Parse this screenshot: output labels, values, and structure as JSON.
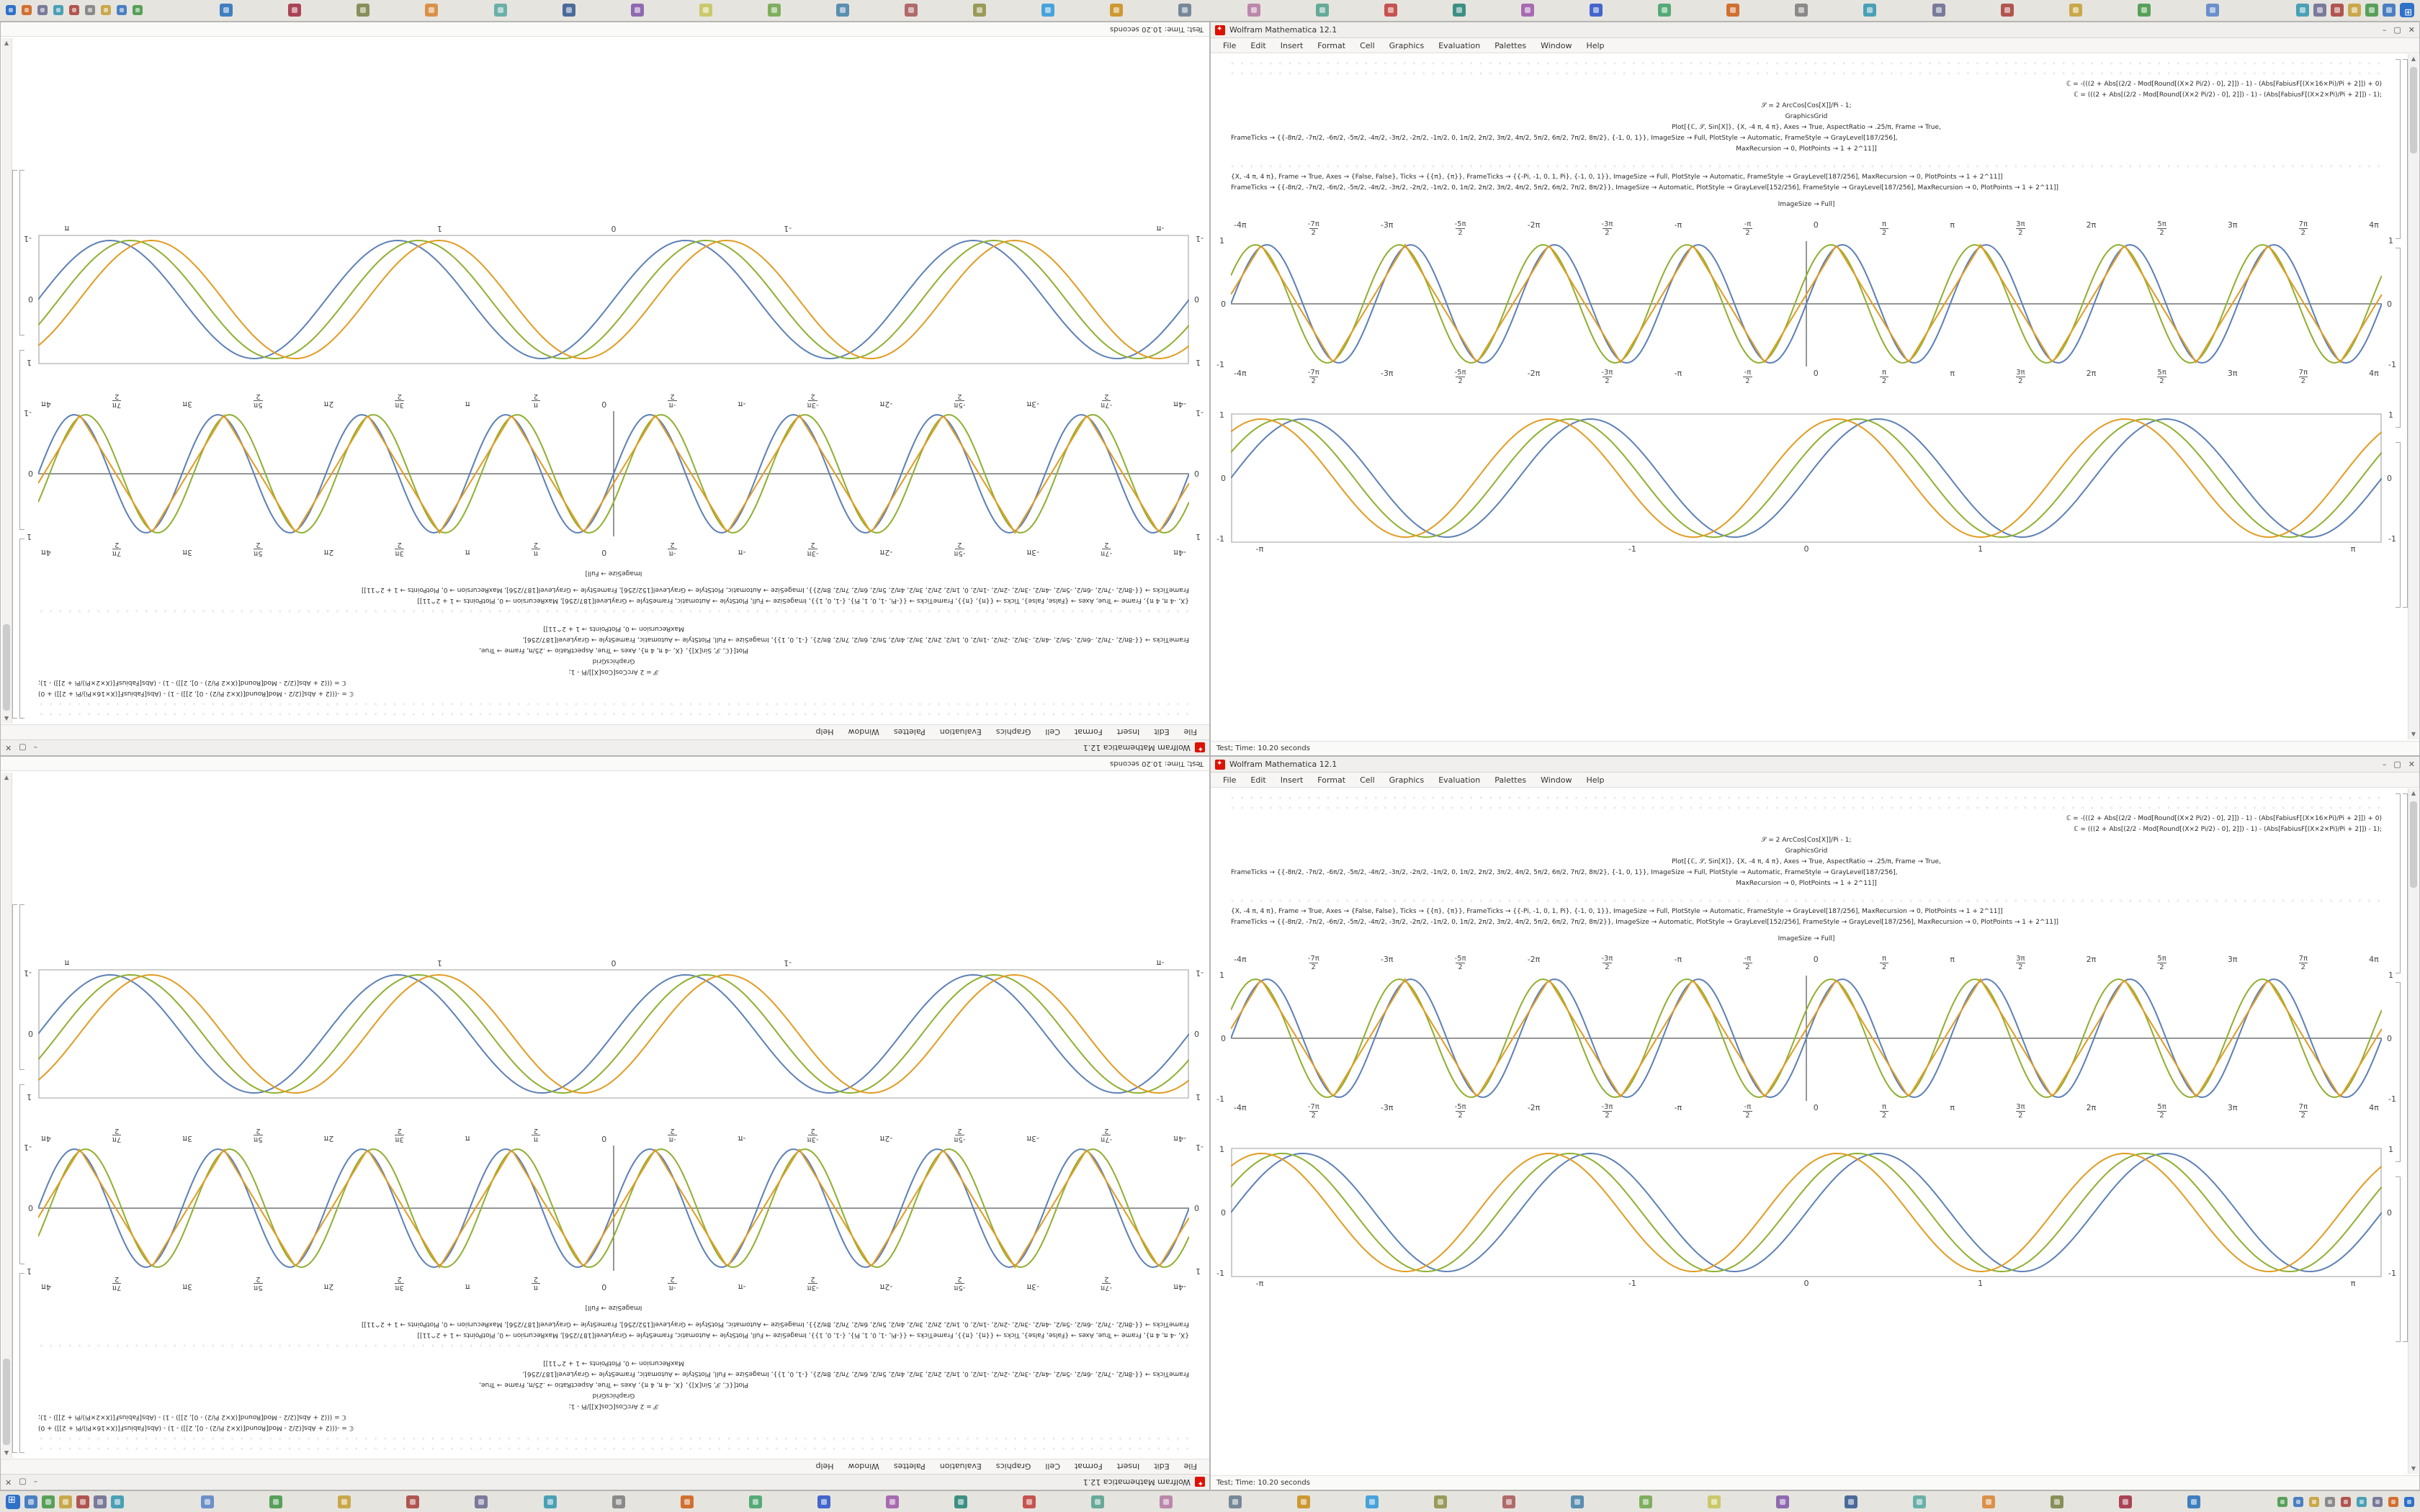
{
  "desktop": {
    "background": "#ffffff"
  },
  "taskbar": {
    "background": "#e6e4df",
    "start_label": "start",
    "left_icons": [
      {
        "name": "app-icon",
        "color": "#4a7fc1"
      },
      {
        "name": "app-icon",
        "color": "#58a05a"
      },
      {
        "name": "app-icon",
        "color": "#c9a84c"
      },
      {
        "name": "app-icon",
        "color": "#b05550"
      },
      {
        "name": "app-icon",
        "color": "#7a7a9a"
      },
      {
        "name": "app-icon",
        "color": "#4aa0b5"
      }
    ],
    "middle_icons": [
      {
        "name": "app-icon",
        "color": "#6b8fc9"
      },
      {
        "name": "app-icon",
        "color": "#58a05a"
      },
      {
        "name": "app-icon",
        "color": "#c9a84c"
      },
      {
        "name": "app-icon",
        "color": "#b05550"
      },
      {
        "name": "app-icon",
        "color": "#7a7a9a"
      },
      {
        "name": "app-icon",
        "color": "#4aa0b5"
      },
      {
        "name": "app-icon",
        "color": "#8a8a8a"
      },
      {
        "name": "app-icon",
        "color": "#d07030"
      },
      {
        "name": "app-icon",
        "color": "#55aa77"
      },
      {
        "name": "app-icon",
        "color": "#4466cc"
      },
      {
        "name": "app-icon",
        "color": "#a66bb0"
      },
      {
        "name": "app-icon",
        "color": "#3d8f83"
      },
      {
        "name": "app-icon",
        "color": "#c5534f"
      },
      {
        "name": "app-icon",
        "color": "#66aa99"
      },
      {
        "name": "app-icon",
        "color": "#bb88aa"
      },
      {
        "name": "app-icon",
        "color": "#778899"
      },
      {
        "name": "app-icon",
        "color": "#cc9933"
      },
      {
        "name": "app-icon",
        "color": "#47a3d9"
      },
      {
        "name": "app-icon",
        "color": "#9a9a5a"
      },
      {
        "name": "app-icon",
        "color": "#b06a6a"
      },
      {
        "name": "app-icon",
        "color": "#5a8fb0"
      },
      {
        "name": "app-icon",
        "color": "#7fae5f"
      },
      {
        "name": "app-icon",
        "color": "#c9c96b"
      },
      {
        "name": "app-icon",
        "color": "#8f6ab0"
      },
      {
        "name": "app-icon",
        "color": "#4a6b9a"
      },
      {
        "name": "app-icon",
        "color": "#6bb0a8"
      },
      {
        "name": "app-icon",
        "color": "#d9914a"
      },
      {
        "name": "app-icon",
        "color": "#888f5a"
      },
      {
        "name": "app-icon",
        "color": "#aa4455"
      },
      {
        "name": "app-icon",
        "color": "#3f7fbf"
      }
    ],
    "tray_icons": [
      {
        "name": "tray-icon",
        "color": "#58a05a"
      },
      {
        "name": "tray-icon",
        "color": "#4a7fc1"
      },
      {
        "name": "tray-icon",
        "color": "#c9a84c"
      },
      {
        "name": "tray-icon",
        "color": "#8a8a8a"
      },
      {
        "name": "tray-icon",
        "color": "#b05550"
      },
      {
        "name": "tray-icon",
        "color": "#4aa0b5"
      },
      {
        "name": "tray-icon",
        "color": "#7a7a9a"
      },
      {
        "name": "tray-icon",
        "color": "#d07030"
      },
      {
        "name": "tray-icon",
        "color": "#2f71c9"
      }
    ]
  },
  "window": {
    "title": "Wolfram Mathematica 12.1",
    "app_icon_color": "#dd1100",
    "controls": {
      "minimize": "–",
      "maximize": "▢",
      "close": "✕"
    },
    "menu": [
      "File",
      "Edit",
      "Insert",
      "Format",
      "Cell",
      "Graphics",
      "Evaluation",
      "Palettes",
      "Window",
      "Help"
    ],
    "status": "Test; Time: 10.20 seconds",
    "glyph_row": {
      "char": "◦",
      "count": 150
    },
    "code_lines": [
      {
        "t": "glyphs"
      },
      {
        "t": "glyphs"
      },
      {
        "t": "text",
        "align": "right",
        "s": "ℂ = -(((2 + Abs[(2/2 - Mod[Round[(X×2 Pi/2) - 0], 2]]) - 1) - (Abs[FabiusF[(X×16×Pi)/Pi + 2]]) + 0)"
      },
      {
        "t": "text",
        "align": "right",
        "s": "ℂ = (((2 + Abs[(2/2 - Mod[Round[(X×2 Pi/2) - 0], 2]]) - 1) - (Abs[FabiusF[(X×2×Pi)/Pi + 2]]) - 1);"
      },
      {
        "t": "text",
        "align": "center",
        "s": "𝒮 = 2 ArcCos[Cos[X]]/Pi - 1;"
      },
      {
        "t": "text",
        "align": "center",
        "s": "GraphicsGrid"
      },
      {
        "t": "text",
        "align": "center",
        "s": "Plot[{ℂ, 𝒮, Sin[X]}, {X, -4 π, 4 π}, Axes → True, AspectRatio → .25/π, Frame → True,"
      },
      {
        "t": "text",
        "s": "FrameTicks → {{-8π/2, -7π/2, -6π/2, -5π/2, -4π/2, -3π/2, -2π/2, -1π/2, 0, 1π/2, 2π/2, 3π/2, 4π/2, 5π/2, 6π/2, 7π/2, 8π/2}, {-1, 0, 1}}, ImageSize → Full, PlotStyle → Automatic, FrameStyle → GrayLevel[187/256],"
      },
      {
        "t": "text",
        "align": "center",
        "s": "MaxRecursion → 0, PlotPoints → 1 + 2^11]]"
      },
      {
        "t": "glyphs",
        "gap": 10
      },
      {
        "t": "text",
        "s": "{X, -4 π, 4 π}, Frame → True, Axes → {False, False}, Ticks → {{π}, {π}}, FrameTicks → {{-Pi, -1, 0, 1, Pi}, {-1, 0, 1}}, ImageSize → Full, PlotStyle → Automatic, FrameStyle → GrayLevel[187/256], MaxRecursion → 0, PlotPoints → 1 + 2^11]]"
      },
      {
        "t": "text",
        "s": "FrameTicks → {{-8π/2, -7π/2, -6π/2, -5π/2, -4π/2, -3π/2, -2π/2, -1π/2, 0, 1π/2, 2π/2, 3π/2, 4π/2, 5π/2, 6π/2, 7π/2, 8π/2}}, ImageSize → Automatic, PlotStyle → GrayLevel[152/256], FrameStyle → GrayLevel[187/256], MaxRecursion → 0, PlotPoints → 1 + 2^11]]"
      },
      {
        "t": "text",
        "align": "center",
        "gap": 8,
        "s": "ImageSize → Full]"
      }
    ],
    "axis_plot": {
      "xticks": [
        {
          "a": "-4π",
          "b": ""
        },
        {
          "a": "-7π",
          "b": "2"
        },
        {
          "a": "-3π",
          "b": ""
        },
        {
          "a": "-5π",
          "b": "2"
        },
        {
          "a": "-2π",
          "b": ""
        },
        {
          "a": "-3π",
          "b": "2"
        },
        {
          "a": "-π",
          "b": ""
        },
        {
          "a": "-π",
          "b": "2"
        },
        {
          "a": "0",
          "b": ""
        },
        {
          "a": "π",
          "b": "2"
        },
        {
          "a": "π",
          "b": ""
        },
        {
          "a": "3π",
          "b": "2"
        },
        {
          "a": "2π",
          "b": ""
        },
        {
          "a": "5π",
          "b": "2"
        },
        {
          "a": "3π",
          "b": ""
        },
        {
          "a": "7π",
          "b": "2"
        },
        {
          "a": "4π",
          "b": ""
        }
      ],
      "ylabels": [
        "1",
        "0",
        "-1"
      ],
      "periods": 8,
      "curves": [
        {
          "name": "sine-curve-blue",
          "kind": "sin",
          "phase": 0,
          "color": "#5e81b5"
        },
        {
          "name": "sine-curve-olive",
          "kind": "sin",
          "phase": 0.5,
          "color": "#8fb032"
        },
        {
          "name": "triangle-curve-tan",
          "kind": "tri",
          "phase": 0.25,
          "color": "#e19c24"
        }
      ]
    },
    "framed_plot": {
      "xticks": [
        {
          "label": "-π",
          "v": -3.1416
        },
        {
          "label": "-1",
          "v": -1
        },
        {
          "label": "0",
          "v": 0
        },
        {
          "label": "1",
          "v": 1
        },
        {
          "label": "π",
          "v": 3.1416
        }
      ],
      "ylabels": [
        "1",
        "0",
        "-1"
      ],
      "periods": 4,
      "curves": [
        {
          "name": "sine-curve-blue",
          "kind": "sin",
          "phase": 0,
          "color": "#5e81b5"
        },
        {
          "name": "sine-curve-olive",
          "kind": "sin",
          "phase": 0.45,
          "color": "#8fb032"
        },
        {
          "name": "sine-curve-tan",
          "kind": "sin",
          "phase": 0.9,
          "color": "#e19c24"
        }
      ]
    }
  }
}
